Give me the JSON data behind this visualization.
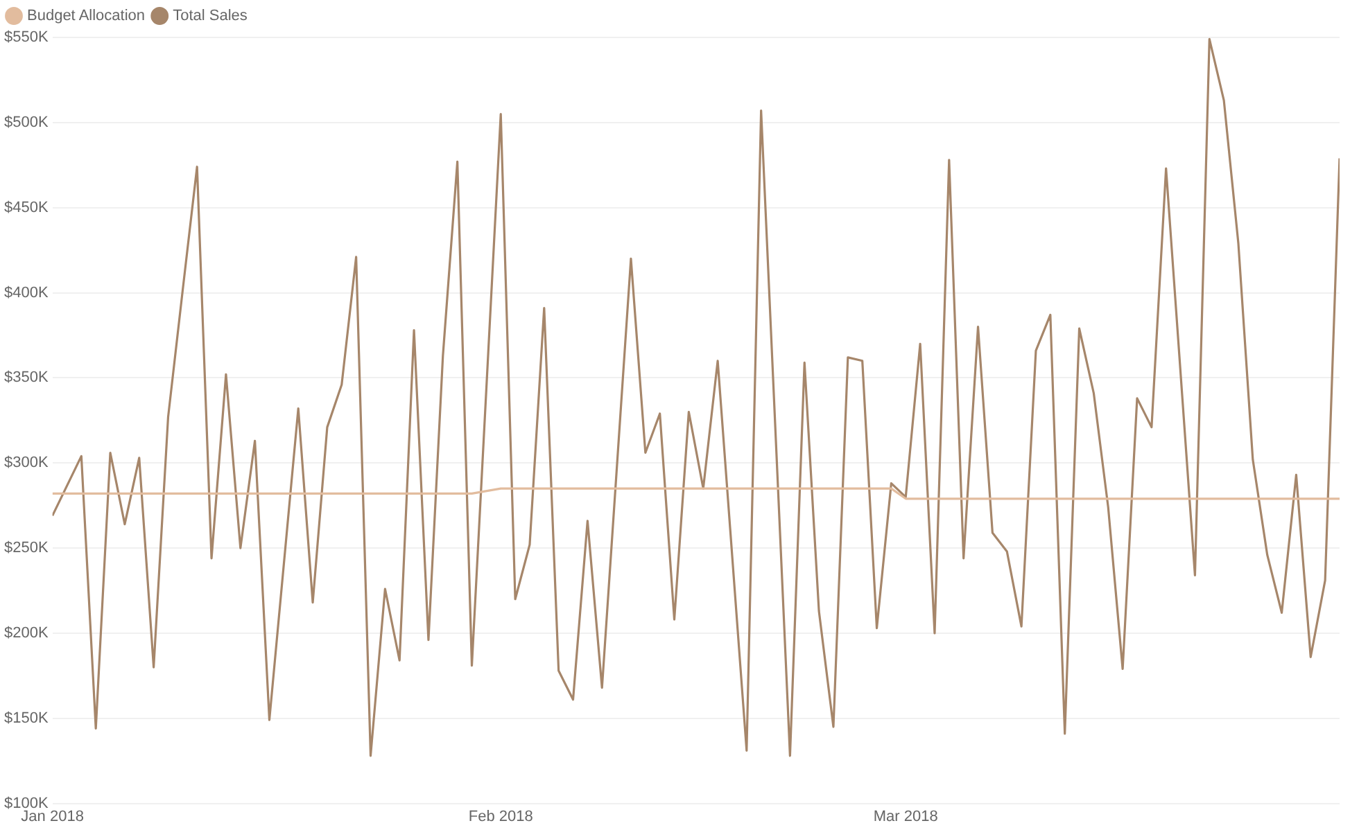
{
  "chart_data": {
    "type": "line",
    "legend": "top left",
    "grid": "y",
    "marker": "none",
    "line_style": "solid",
    "xlim": [
      "2018-01-01",
      "2018-03-31"
    ],
    "xticks": [
      {
        "value": "2018-01-01",
        "label": "Jan 2018"
      },
      {
        "value": "2018-02-01",
        "label": "Feb 2018"
      },
      {
        "value": "2018-03-01",
        "label": "Mar 2018"
      }
    ],
    "ylim": [
      100000,
      550000
    ],
    "yticks": [
      {
        "value": 100000,
        "label": "$100K"
      },
      {
        "value": 150000,
        "label": "$150K"
      },
      {
        "value": 200000,
        "label": "$200K"
      },
      {
        "value": 250000,
        "label": "$250K"
      },
      {
        "value": 300000,
        "label": "$300K"
      },
      {
        "value": 350000,
        "label": "$350K"
      },
      {
        "value": 400000,
        "label": "$400K"
      },
      {
        "value": 450000,
        "label": "$450K"
      },
      {
        "value": 500000,
        "label": "$500K"
      },
      {
        "value": 550000,
        "label": "$550K"
      }
    ],
    "series": [
      {
        "name": "Budget Allocation",
        "color": "#e2bc9e",
        "x": [
          "2018-01-01",
          "2018-01-30",
          "2018-02-01",
          "2018-02-28",
          "2018-03-01",
          "2018-03-31"
        ],
        "values": [
          282000,
          282000,
          285000,
          285000,
          279000,
          279000
        ]
      },
      {
        "name": "Total Sales",
        "color": "#a6866a",
        "x": [
          "2018-01-01",
          "2018-01-03",
          "2018-01-04",
          "2018-01-05",
          "2018-01-06",
          "2018-01-07",
          "2018-01-08",
          "2018-01-09",
          "2018-01-10",
          "2018-01-11",
          "2018-01-12",
          "2018-01-13",
          "2018-01-14",
          "2018-01-15",
          "2018-01-16",
          "2018-01-18",
          "2018-01-19",
          "2018-01-20",
          "2018-01-21",
          "2018-01-22",
          "2018-01-23",
          "2018-01-24",
          "2018-01-25",
          "2018-01-26",
          "2018-01-27",
          "2018-01-28",
          "2018-01-29",
          "2018-01-30",
          "2018-02-01",
          "2018-02-02",
          "2018-02-03",
          "2018-02-04",
          "2018-02-05",
          "2018-02-06",
          "2018-02-07",
          "2018-02-08",
          "2018-02-10",
          "2018-02-11",
          "2018-02-12",
          "2018-02-13",
          "2018-02-14",
          "2018-02-15",
          "2018-02-16",
          "2018-02-18",
          "2018-02-19",
          "2018-02-21",
          "2018-02-22",
          "2018-02-23",
          "2018-02-24",
          "2018-02-25",
          "2018-02-26",
          "2018-02-27",
          "2018-02-28",
          "2018-03-01",
          "2018-03-02",
          "2018-03-03",
          "2018-03-04",
          "2018-03-05",
          "2018-03-06",
          "2018-03-07",
          "2018-03-08",
          "2018-03-09",
          "2018-03-10",
          "2018-03-11",
          "2018-03-12",
          "2018-03-13",
          "2018-03-14",
          "2018-03-15",
          "2018-03-16",
          "2018-03-17",
          "2018-03-18",
          "2018-03-19",
          "2018-03-21",
          "2018-03-22",
          "2018-03-23",
          "2018-03-24",
          "2018-03-25",
          "2018-03-26",
          "2018-03-27",
          "2018-03-28",
          "2018-03-29",
          "2018-03-30",
          "2018-03-31"
        ],
        "values": [
          269000,
          304000,
          144000,
          306000,
          264000,
          303000,
          180000,
          327000,
          401000,
          474000,
          244000,
          352000,
          250000,
          313000,
          149000,
          332000,
          218000,
          321000,
          346000,
          421000,
          128000,
          226000,
          184000,
          378000,
          196000,
          363000,
          477000,
          181000,
          505000,
          220000,
          252000,
          391000,
          178000,
          161000,
          266000,
          168000,
          420000,
          306000,
          329000,
          208000,
          330000,
          285000,
          360000,
          131000,
          507000,
          128000,
          359000,
          213000,
          145000,
          362000,
          360000,
          203000,
          288000,
          280000,
          370000,
          200000,
          478000,
          244000,
          380000,
          259000,
          248000,
          204000,
          366000,
          387000,
          141000,
          379000,
          341000,
          274000,
          179000,
          338000,
          321000,
          473000,
          234000,
          549000,
          513000,
          429000,
          302000,
          246000,
          212000,
          293000,
          186000,
          231000,
          479000
        ]
      }
    ]
  }
}
